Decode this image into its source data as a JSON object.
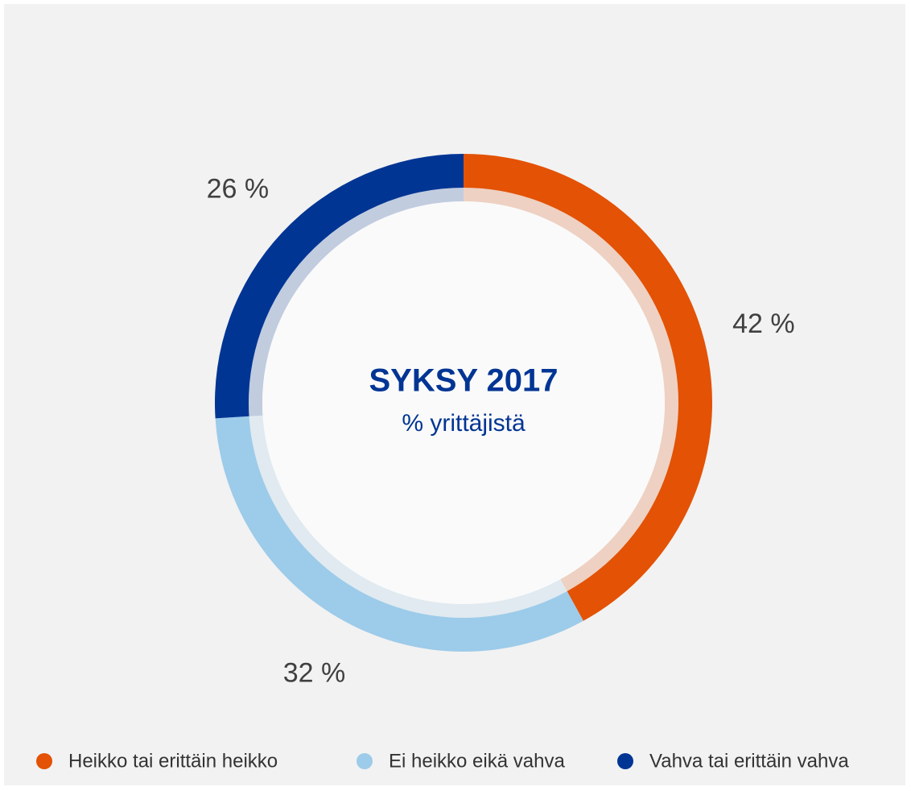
{
  "chart_data": {
    "type": "donut",
    "title": "SYKSY 2017",
    "subtitle": "% yrittäjistä",
    "categories": [
      "Heikko tai erittäin heikko",
      "Ei heikko eikä vahva",
      "Vahva tai erittäin vahva"
    ],
    "values": [
      42,
      32,
      26
    ],
    "value_labels": [
      "42 %",
      "32 %",
      "26 %"
    ],
    "colors": [
      "#e35205",
      "#9dcbea",
      "#003594"
    ],
    "legend": "bottom"
  }
}
